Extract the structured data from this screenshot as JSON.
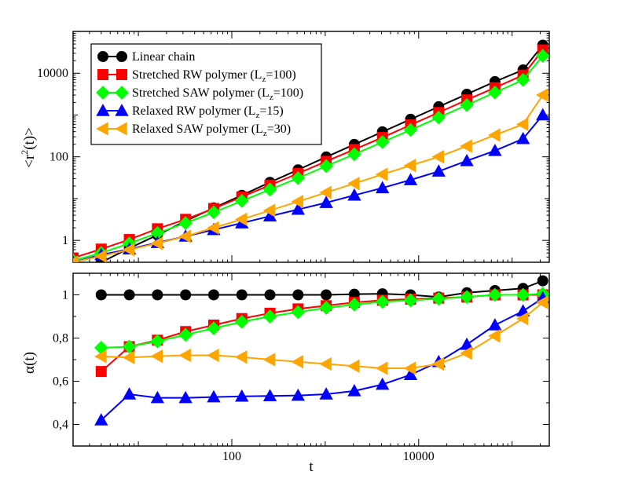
{
  "chart_data": [
    {
      "type": "line",
      "panel": "top",
      "xscale": "log",
      "yscale": "log",
      "xlim": [
        2,
        250000
      ],
      "ylim": [
        0.3,
        100000
      ],
      "ylabel": "<r²(t)>",
      "ylabel_parts": {
        "open": "<",
        "r": "r",
        "sup": "2",
        "rest": "(t)>"
      },
      "yticks": [
        {
          "value": 1,
          "label": "1"
        },
        {
          "value": 100,
          "label": "100"
        },
        {
          "value": 10000,
          "label": "10000"
        }
      ],
      "series": [
        {
          "name": "Linear chain",
          "color": "#000000",
          "marker": "circle",
          "x": [
            4,
            8,
            16,
            32,
            64,
            128,
            256,
            512,
            1024,
            2048,
            4096,
            8192,
            16384,
            32768,
            65536,
            131072,
            212992
          ],
          "y": [
            0.3,
            0.65,
            1.35,
            2.9,
            6.0,
            12.0,
            24.5,
            49,
            99,
            198,
            396,
            790,
            1580,
            3150,
            6300,
            12000,
            47000
          ]
        },
        {
          "name": "Stretched RW polymer",
          "sub": "z",
          "legend_pre": "Stretched RW polymer (L",
          "legend_post": "=100)",
          "color": "#ff0000",
          "marker": "square",
          "x": [
            2,
            4,
            8,
            16,
            32,
            64,
            128,
            256,
            512,
            1024,
            2048,
            4096,
            8192,
            16384,
            32768,
            65536,
            131072,
            212992
          ],
          "y": [
            0.38,
            0.62,
            1.05,
            1.9,
            3.2,
            5.8,
            11.0,
            21,
            40,
            78,
            150,
            290,
            580,
            1150,
            2300,
            4500,
            9000,
            36000
          ]
        },
        {
          "name": "Stretched SAW polymer",
          "sub": "z",
          "legend_pre": "Stretched SAW polymer (L",
          "legend_post": "=100)",
          "color": "#00ff00",
          "marker": "diamond",
          "x": [
            2,
            4,
            8,
            16,
            32,
            64,
            128,
            256,
            512,
            1024,
            2048,
            4096,
            8192,
            16384,
            32768,
            65536,
            131072,
            212992
          ],
          "y": [
            0.33,
            0.5,
            0.85,
            1.5,
            2.6,
            4.7,
            8.8,
            16.5,
            31,
            60,
            115,
            225,
            440,
            870,
            1730,
            3450,
            6900,
            26000
          ]
        },
        {
          "name": "Relaxed RW polymer",
          "sub": "z",
          "legend_pre": "Relaxed RW polymer (L",
          "legend_post": "=15)",
          "color": "#0000ff",
          "marker": "triangle-up",
          "x": [
            2,
            4,
            8,
            16,
            32,
            64,
            128,
            256,
            512,
            1024,
            2048,
            4096,
            8192,
            16384,
            32768,
            65536,
            131072,
            212992
          ],
          "y": [
            0.3,
            0.45,
            0.62,
            0.88,
            1.25,
            1.8,
            2.6,
            3.8,
            5.5,
            8.0,
            12.0,
            18,
            28,
            45,
            80,
            140,
            270,
            1000
          ]
        },
        {
          "name": "Relaxed SAW polymer",
          "sub": "z",
          "legend_pre": "Relaxed SAW polymer (L",
          "legend_post": "=30)",
          "color": "#ffa500",
          "marker": "triangle-left",
          "x": [
            2,
            4,
            8,
            16,
            32,
            64,
            128,
            256,
            512,
            1024,
            2048,
            4096,
            8192,
            16384,
            32768,
            65536,
            131072,
            212992
          ],
          "y": [
            0.3,
            0.42,
            0.6,
            0.85,
            1.25,
            2.0,
            3.2,
            5.2,
            8.5,
            14,
            23,
            38,
            62,
            100,
            180,
            330,
            600,
            3000
          ]
        }
      ]
    },
    {
      "type": "line",
      "panel": "bottom",
      "xscale": "log",
      "yscale": "linear",
      "xlim": [
        2,
        250000
      ],
      "ylim": [
        0.3,
        1.1
      ],
      "xlabel": "t",
      "ylabel": "α(t)",
      "xticks": [
        {
          "value": 100,
          "label": "100"
        },
        {
          "value": 10000,
          "label": "10000"
        }
      ],
      "yticks": [
        {
          "value": 0.4,
          "label": "0,4"
        },
        {
          "value": 0.6,
          "label": "0,6"
        },
        {
          "value": 0.8,
          "label": "0,8"
        },
        {
          "value": 1.0,
          "label": "1"
        }
      ],
      "series": [
        {
          "name": "Linear chain",
          "color": "#000000",
          "marker": "circle",
          "x": [
            4,
            8,
            16,
            32,
            64,
            128,
            256,
            512,
            1024,
            2048,
            4096,
            8192,
            16384,
            32768,
            65536,
            131072,
            212992
          ],
          "y": [
            1.0,
            1.0,
            1.0,
            1.0,
            1.0,
            1.0,
            1.0,
            1.0,
            1.0,
            1.003,
            1.005,
            1.0,
            0.99,
            1.01,
            1.02,
            1.03,
            1.065
          ]
        },
        {
          "name": "Stretched RW polymer",
          "color": "#ff0000",
          "marker": "square",
          "x": [
            4,
            8,
            16,
            32,
            64,
            128,
            256,
            512,
            1024,
            2048,
            4096,
            8192,
            16384,
            32768,
            65536,
            131072,
            212992
          ],
          "y": [
            0.645,
            0.76,
            0.79,
            0.83,
            0.86,
            0.89,
            0.915,
            0.935,
            0.95,
            0.965,
            0.975,
            0.98,
            0.985,
            0.99,
            1.0,
            1.0,
            1.0
          ]
        },
        {
          "name": "Stretched SAW polymer",
          "color": "#00ff00",
          "marker": "diamond",
          "x": [
            4,
            8,
            16,
            32,
            64,
            128,
            256,
            512,
            1024,
            2048,
            4096,
            8192,
            16384,
            32768,
            65536,
            131072,
            212992
          ],
          "y": [
            0.755,
            0.76,
            0.785,
            0.815,
            0.845,
            0.875,
            0.9,
            0.92,
            0.94,
            0.955,
            0.968,
            0.975,
            0.982,
            0.99,
            1.0,
            1.0,
            1.005
          ]
        },
        {
          "name": "Relaxed RW polymer",
          "color": "#0000ff",
          "marker": "triangle-up",
          "x": [
            4,
            8,
            16,
            32,
            64,
            128,
            256,
            512,
            1024,
            2048,
            4096,
            8192,
            16384,
            32768,
            65536,
            131072,
            212992
          ],
          "y": [
            0.42,
            0.54,
            0.523,
            0.523,
            0.527,
            0.53,
            0.532,
            0.534,
            0.54,
            0.555,
            0.585,
            0.63,
            0.69,
            0.77,
            0.86,
            0.925,
            0.985
          ]
        },
        {
          "name": "Relaxed SAW polymer",
          "color": "#ffa500",
          "marker": "triangle-left",
          "x": [
            4,
            8,
            16,
            32,
            64,
            128,
            256,
            512,
            1024,
            2048,
            4096,
            8192,
            16384,
            32768,
            65536,
            131072,
            212992
          ],
          "y": [
            0.715,
            0.71,
            0.716,
            0.72,
            0.72,
            0.712,
            0.7,
            0.69,
            0.68,
            0.67,
            0.66,
            0.66,
            0.68,
            0.73,
            0.81,
            0.89,
            0.965
          ]
        }
      ]
    }
  ]
}
